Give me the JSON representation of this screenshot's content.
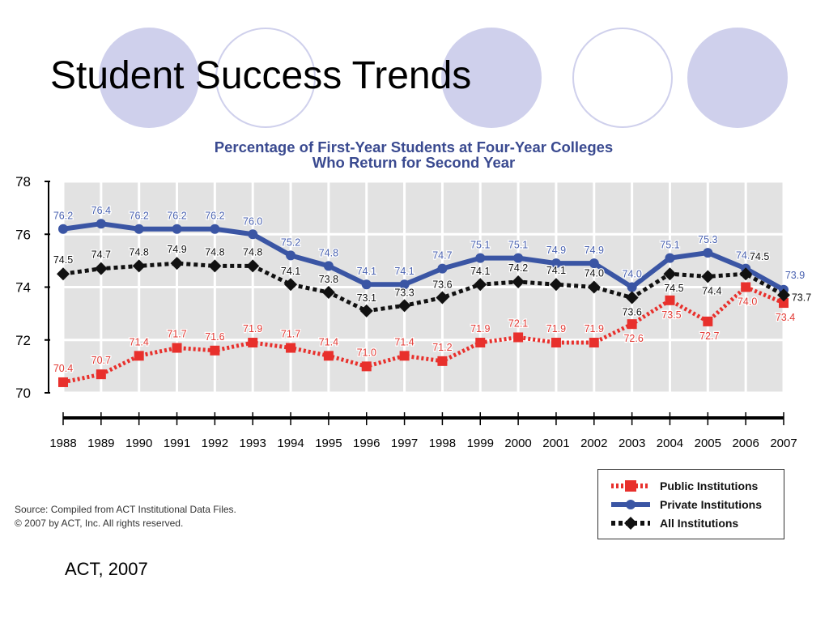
{
  "slide": {
    "title": "Student Success Trends",
    "credit": "ACT, 2007"
  },
  "source": {
    "line1": "Source: Compiled from ACT Institutional Data Files.",
    "line2": "© 2007 by ACT, Inc. All rights reserved."
  },
  "legend": {
    "placement": "bottom-right",
    "items": [
      "Public Institutions",
      "Private Institutions",
      "All Institutions"
    ]
  },
  "colors": {
    "decor_circle": "#cfd0ec",
    "plot_background": "#e2e2e2",
    "title": "#3a4a90",
    "public": "#e8302c",
    "private": "#3a55a4",
    "all": "#111111",
    "public_label": "#e23b35",
    "private_label": "#4a62b0"
  },
  "chart_data": {
    "type": "line",
    "title_line1": "Percentage of First-Year Students at Four-Year Colleges",
    "title_line2": "Who Return for Second Year",
    "xlabel": "",
    "ylabel": "",
    "categories": [
      "1988",
      "1989",
      "1990",
      "1991",
      "1992",
      "1993",
      "1994",
      "1995",
      "1996",
      "1997",
      "1998",
      "1999",
      "2000",
      "2001",
      "2002",
      "2003",
      "2004",
      "2005",
      "2006",
      "2007"
    ],
    "ylim": [
      70,
      78
    ],
    "yticks": [
      70,
      72,
      74,
      76,
      78
    ],
    "grid": true,
    "series": [
      {
        "name": "Public Institutions",
        "style": "dotted",
        "marker": "square",
        "values": [
          70.4,
          70.7,
          71.4,
          71.7,
          71.6,
          71.9,
          71.7,
          71.4,
          71.0,
          71.4,
          71.2,
          71.9,
          72.1,
          71.9,
          71.9,
          72.6,
          73.5,
          72.7,
          74.0,
          73.4
        ]
      },
      {
        "name": "Private Institutions",
        "style": "solid",
        "marker": "circle",
        "values": [
          76.2,
          76.4,
          76.2,
          76.2,
          76.2,
          76.0,
          75.2,
          74.8,
          74.1,
          74.1,
          74.7,
          75.1,
          75.1,
          74.9,
          74.9,
          74.0,
          75.1,
          75.3,
          74.7,
          73.9
        ]
      },
      {
        "name": "All Institutions",
        "style": "dotted",
        "marker": "diamond",
        "values": [
          74.5,
          74.7,
          74.8,
          74.9,
          74.8,
          74.8,
          74.1,
          73.8,
          73.1,
          73.3,
          73.6,
          74.1,
          74.2,
          74.1,
          74.0,
          73.6,
          74.5,
          74.4,
          74.5,
          73.7
        ]
      }
    ]
  }
}
